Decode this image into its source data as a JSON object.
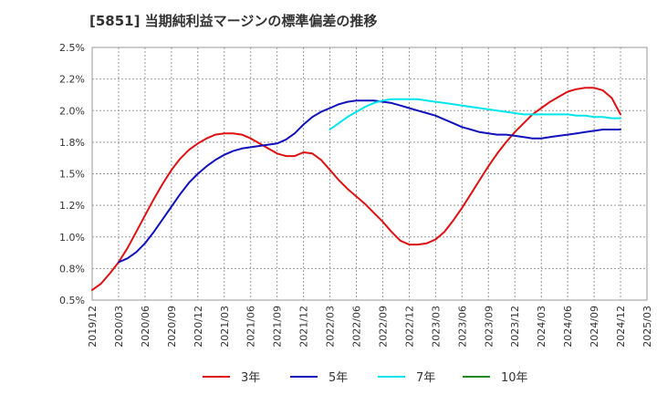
{
  "chart_data": {
    "type": "line",
    "title": "[5851]  当期純利益マージンの標準偏差の推移",
    "xlabel": "",
    "ylabel": "",
    "ylim": [
      0.5,
      2.5
    ],
    "yticks": [
      0.5,
      0.75,
      1.0,
      1.25,
      1.5,
      1.75,
      2.0,
      2.25,
      2.5
    ],
    "ytick_labels": [
      "0.5%",
      "0.8%",
      "1.0%",
      "1.2%",
      "1.5%",
      "1.8%",
      "2.0%",
      "2.2%",
      "2.5%"
    ],
    "xlim": [
      "2019/12",
      "2025/03"
    ],
    "xtick_labels": [
      "2019/12",
      "2020/03",
      "2020/06",
      "2020/09",
      "2020/12",
      "2021/03",
      "2021/06",
      "2021/09",
      "2021/12",
      "2022/03",
      "2022/06",
      "2022/09",
      "2022/12",
      "2023/03",
      "2023/06",
      "2023/09",
      "2023/12",
      "2024/03",
      "2024/06",
      "2024/09",
      "2024/12",
      "2025/03"
    ],
    "grid": true,
    "legend": "bottom",
    "series": [
      {
        "name": "3年",
        "color": "#dd1111",
        "x": [
          "2019/12",
          "2020/01",
          "2020/02",
          "2020/03",
          "2020/04",
          "2020/05",
          "2020/06",
          "2020/07",
          "2020/08",
          "2020/09",
          "2020/10",
          "2020/11",
          "2020/12",
          "2021/01",
          "2021/02",
          "2021/03",
          "2021/04",
          "2021/05",
          "2021/06",
          "2021/07",
          "2021/08",
          "2021/09",
          "2021/10",
          "2021/11",
          "2021/12",
          "2022/01",
          "2022/02",
          "2022/03",
          "2022/04",
          "2022/05",
          "2022/06",
          "2022/07",
          "2022/08",
          "2022/09",
          "2022/10",
          "2022/11",
          "2022/12",
          "2023/01",
          "2023/02",
          "2023/03",
          "2023/04",
          "2023/05",
          "2023/06",
          "2023/07",
          "2023/08",
          "2023/09",
          "2023/10",
          "2023/11",
          "2023/12",
          "2024/01",
          "2024/02",
          "2024/03",
          "2024/04",
          "2024/05",
          "2024/06",
          "2024/07",
          "2024/08",
          "2024/09",
          "2024/10",
          "2024/11",
          "2024/12"
        ],
        "values": [
          0.58,
          0.63,
          0.71,
          0.8,
          0.91,
          1.04,
          1.17,
          1.3,
          1.42,
          1.53,
          1.62,
          1.69,
          1.74,
          1.78,
          1.81,
          1.82,
          1.82,
          1.81,
          1.78,
          1.74,
          1.7,
          1.66,
          1.64,
          1.64,
          1.67,
          1.66,
          1.61,
          1.53,
          1.45,
          1.38,
          1.32,
          1.26,
          1.19,
          1.12,
          1.04,
          0.97,
          0.94,
          0.94,
          0.95,
          0.98,
          1.04,
          1.13,
          1.23,
          1.34,
          1.45,
          1.56,
          1.66,
          1.75,
          1.83,
          1.9,
          1.97,
          2.02,
          2.07,
          2.11,
          2.15,
          2.17,
          2.18,
          2.18,
          2.16,
          2.1,
          1.97
        ]
      },
      {
        "name": "5年",
        "color": "#1111bb",
        "x": [
          "2020/03",
          "2020/04",
          "2020/05",
          "2020/06",
          "2020/07",
          "2020/08",
          "2020/09",
          "2020/10",
          "2020/11",
          "2020/12",
          "2021/01",
          "2021/02",
          "2021/03",
          "2021/04",
          "2021/05",
          "2021/06",
          "2021/07",
          "2021/08",
          "2021/09",
          "2021/10",
          "2021/11",
          "2021/12",
          "2022/01",
          "2022/02",
          "2022/03",
          "2022/04",
          "2022/05",
          "2022/06",
          "2022/07",
          "2022/08",
          "2022/09",
          "2022/10",
          "2022/11",
          "2022/12",
          "2023/01",
          "2023/02",
          "2023/03",
          "2023/04",
          "2023/05",
          "2023/06",
          "2023/07",
          "2023/08",
          "2023/09",
          "2023/10",
          "2023/11",
          "2023/12",
          "2024/01",
          "2024/02",
          "2024/03",
          "2024/04",
          "2024/05",
          "2024/06",
          "2024/07",
          "2024/08",
          "2024/09",
          "2024/10",
          "2024/11",
          "2024/12"
        ],
        "values": [
          0.8,
          0.83,
          0.88,
          0.95,
          1.04,
          1.14,
          1.24,
          1.34,
          1.43,
          1.5,
          1.56,
          1.61,
          1.65,
          1.68,
          1.7,
          1.71,
          1.72,
          1.73,
          1.74,
          1.77,
          1.82,
          1.89,
          1.95,
          1.99,
          2.02,
          2.05,
          2.07,
          2.08,
          2.08,
          2.08,
          2.07,
          2.06,
          2.04,
          2.02,
          2.0,
          1.98,
          1.96,
          1.93,
          1.9,
          1.87,
          1.85,
          1.83,
          1.82,
          1.81,
          1.81,
          1.8,
          1.79,
          1.78,
          1.78,
          1.79,
          1.8,
          1.81,
          1.82,
          1.83,
          1.84,
          1.85,
          1.85,
          1.85
        ]
      },
      {
        "name": "7年",
        "color": "#00e5ee",
        "x": [
          "2022/03",
          "2022/04",
          "2022/05",
          "2022/06",
          "2022/07",
          "2022/08",
          "2022/09",
          "2022/10",
          "2022/11",
          "2022/12",
          "2023/01",
          "2023/02",
          "2023/03",
          "2023/04",
          "2023/05",
          "2023/06",
          "2023/07",
          "2023/08",
          "2023/09",
          "2023/10",
          "2023/11",
          "2023/12",
          "2024/01",
          "2024/02",
          "2024/03",
          "2024/04",
          "2024/05",
          "2024/06",
          "2024/07",
          "2024/08",
          "2024/09",
          "2024/10",
          "2024/11",
          "2024/12"
        ],
        "values": [
          1.85,
          1.9,
          1.95,
          1.99,
          2.03,
          2.06,
          2.08,
          2.09,
          2.09,
          2.09,
          2.09,
          2.08,
          2.07,
          2.06,
          2.05,
          2.04,
          2.03,
          2.02,
          2.01,
          2.0,
          1.99,
          1.98,
          1.97,
          1.97,
          1.97,
          1.97,
          1.97,
          1.97,
          1.96,
          1.96,
          1.95,
          1.95,
          1.94,
          1.94
        ]
      },
      {
        "name": "10年",
        "color": "#228822",
        "x": [],
        "values": []
      }
    ]
  }
}
